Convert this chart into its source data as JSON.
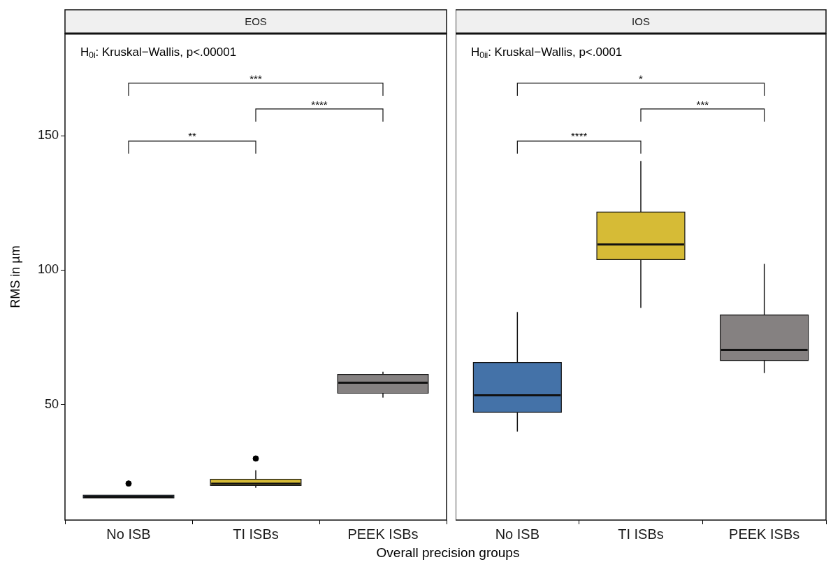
{
  "chart_data": [
    {
      "type": "box",
      "title": "EOS",
      "ylabel": "RMS in µm",
      "xlabel": "Overall precision groups",
      "categories": [
        "No ISB",
        "TI ISBs",
        "PEEK ISBs"
      ],
      "colors": [
        "#4472a8",
        "#d6bb36",
        "#858181"
      ],
      "boxes": [
        {
          "low": 14.8,
          "q1": 15.2,
          "median": 15.7,
          "q3": 16.3,
          "high": 16.5,
          "outliers": [
            20.6
          ]
        },
        {
          "low": 19.0,
          "q1": 19.9,
          "median": 20.5,
          "q3": 22.2,
          "high": 25.5,
          "outliers": [
            29.9
          ]
        },
        {
          "low": 52.6,
          "q1": 54.2,
          "median": 58.1,
          "q3": 61.2,
          "high": 62.2
        }
      ],
      "ylim": [
        7,
        188
      ],
      "yticks": [
        50,
        100,
        150
      ],
      "grid": false,
      "legend": false,
      "annotations": [
        "H$_{0i}$: Kruskal−Wallis, p<.00001",
        "***",
        "****",
        "**"
      ]
    },
    {
      "type": "box",
      "title": "IOS",
      "categories": [
        "No ISB",
        "TI ISBs",
        "PEEK ISBs"
      ],
      "colors": [
        "#4472a8",
        "#d6bb36",
        "#858181"
      ],
      "boxes": [
        {
          "low": 39.9,
          "q1": 47.1,
          "median": 53.4,
          "q3": 65.6,
          "high": 84.4
        },
        {
          "low": 85.9,
          "q1": 103.9,
          "median": 109.5,
          "q3": 121.6,
          "high": 140.6
        },
        {
          "low": 61.7,
          "q1": 66.4,
          "median": 70.3,
          "q3": 83.3,
          "high": 102.3
        }
      ],
      "ylim": [
        7,
        188
      ],
      "yticks": [
        50,
        100,
        150
      ],
      "grid": false,
      "legend": false,
      "tick_labels": "x",
      "annotations": [
        "H$_{0ii}$: Kruskal−Wallis, p<.0001",
        "*",
        "***",
        "****"
      ]
    }
  ]
}
